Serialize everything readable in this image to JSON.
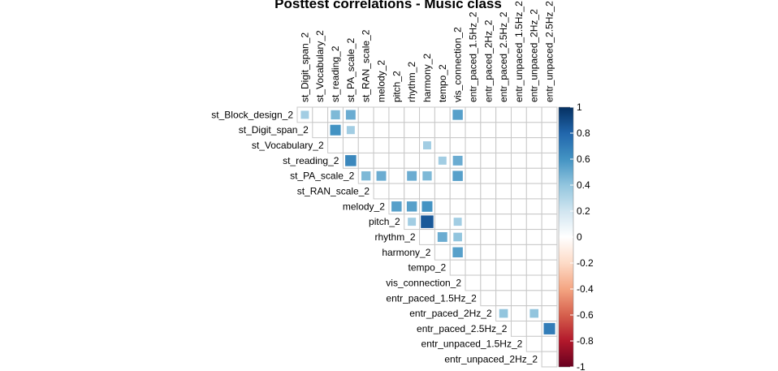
{
  "chart_data": {
    "type": "heatmap",
    "title": "Posttest correlations - Music class",
    "shape": "upper-triangle",
    "row_labels": [
      "st_Block_design_2",
      "st_Digit_span_2",
      "st_Vocabulary_2",
      "st_reading_2",
      "st_PA_scale_2",
      "st_RAN_scale_2",
      "melody_2",
      "pitch_2",
      "rhythm_2",
      "harmony_2",
      "tempo_2",
      "vis_connection_2",
      "entr_paced_1.5Hz_2",
      "entr_paced_2Hz_2",
      "entr_paced_2.5Hz_2",
      "entr_unpaced_1.5Hz_2",
      "entr_unpaced_2Hz_2"
    ],
    "col_labels": [
      "st_Digit_span_2",
      "st_Vocabulary_2",
      "st_reading_2",
      "st_PA_scale_2",
      "st_RAN_scale_2",
      "melody_2",
      "pitch_2",
      "rhythm_2",
      "harmony_2",
      "tempo_2",
      "vis_connection_2",
      "entr_paced_1.5Hz_2",
      "entr_paced_2Hz_2",
      "entr_paced_2.5Hz_2",
      "entr_unpaced_1.5Hz_2",
      "entr_unpaced_2Hz_2",
      "entr_unpaced_2.5Hz_2"
    ],
    "cells": [
      {
        "row": "st_Block_design_2",
        "col": "st_Digit_span_2",
        "value": 0.35
      },
      {
        "row": "st_Block_design_2",
        "col": "st_reading_2",
        "value": 0.45
      },
      {
        "row": "st_Block_design_2",
        "col": "st_PA_scale_2",
        "value": 0.5
      },
      {
        "row": "st_Block_design_2",
        "col": "vis_connection_2",
        "value": 0.55
      },
      {
        "row": "st_Digit_span_2",
        "col": "st_reading_2",
        "value": 0.6
      },
      {
        "row": "st_Digit_span_2",
        "col": "st_PA_scale_2",
        "value": 0.35
      },
      {
        "row": "st_Vocabulary_2",
        "col": "harmony_2",
        "value": 0.35
      },
      {
        "row": "st_reading_2",
        "col": "st_PA_scale_2",
        "value": 0.65
      },
      {
        "row": "st_reading_2",
        "col": "tempo_2",
        "value": 0.35
      },
      {
        "row": "st_reading_2",
        "col": "vis_connection_2",
        "value": 0.5
      },
      {
        "row": "st_PA_scale_2",
        "col": "st_RAN_scale_2",
        "value": 0.45
      },
      {
        "row": "st_PA_scale_2",
        "col": "melody_2",
        "value": 0.5
      },
      {
        "row": "st_PA_scale_2",
        "col": "rhythm_2",
        "value": 0.5
      },
      {
        "row": "st_PA_scale_2",
        "col": "harmony_2",
        "value": 0.45
      },
      {
        "row": "st_PA_scale_2",
        "col": "vis_connection_2",
        "value": 0.55
      },
      {
        "row": "melody_2",
        "col": "pitch_2",
        "value": 0.55
      },
      {
        "row": "melody_2",
        "col": "rhythm_2",
        "value": 0.55
      },
      {
        "row": "melody_2",
        "col": "harmony_2",
        "value": 0.6
      },
      {
        "row": "pitch_2",
        "col": "rhythm_2",
        "value": 0.35
      },
      {
        "row": "pitch_2",
        "col": "harmony_2",
        "value": 0.85
      },
      {
        "row": "pitch_2",
        "col": "vis_connection_2",
        "value": 0.35
      },
      {
        "row": "rhythm_2",
        "col": "tempo_2",
        "value": 0.5
      },
      {
        "row": "rhythm_2",
        "col": "vis_connection_2",
        "value": 0.4
      },
      {
        "row": "harmony_2",
        "col": "vis_connection_2",
        "value": 0.55
      },
      {
        "row": "entr_paced_2Hz_2",
        "col": "entr_paced_2.5Hz_2",
        "value": 0.4
      },
      {
        "row": "entr_paced_2Hz_2",
        "col": "entr_unpaced_2Hz_2",
        "value": 0.4
      },
      {
        "row": "entr_paced_2.5Hz_2",
        "col": "entr_unpaced_2.5Hz_2",
        "value": 0.7
      }
    ],
    "colorbar": {
      "range": [
        -1,
        1
      ],
      "ticks": [
        "1",
        "0.8",
        "0.6",
        "0.4",
        "0.2",
        "0",
        "-0.2",
        "-0.4",
        "-0.6",
        "-0.8",
        "-1"
      ],
      "colors": [
        "#67001F",
        "#B2182B",
        "#D6604D",
        "#F4A582",
        "#FDDBC7",
        "#FFFFFF",
        "#D1E5F0",
        "#92C5DE",
        "#4393C3",
        "#2166AC",
        "#053061"
      ]
    },
    "grid": true
  }
}
